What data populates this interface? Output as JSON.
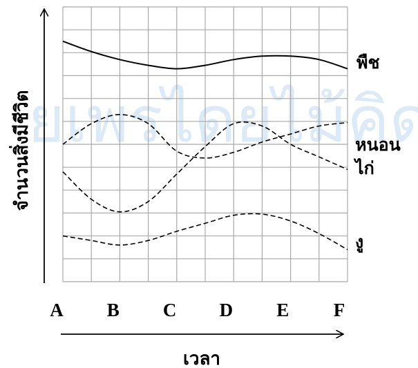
{
  "watermark": "ยเพรไดยไม้คิด",
  "chart_data": {
    "type": "line",
    "title": "",
    "xlabel": "เวลา",
    "ylabel": "จำนวนสิ่งมีชีวิต",
    "categories": [
      "A",
      "B",
      "C",
      "D",
      "E",
      "F"
    ],
    "ylim": [
      0,
      12
    ],
    "grid": true,
    "legend": "right-of-lines",
    "series": [
      {
        "name": "พืช",
        "style": "solid",
        "color": "#000000",
        "x": [
          0,
          0.5,
          1,
          1.5,
          2,
          2.5,
          3,
          3.5,
          4,
          4.5,
          5
        ],
        "values": [
          10.5,
          10.05,
          9.7,
          9.45,
          9.3,
          9.45,
          9.7,
          9.85,
          9.85,
          9.7,
          9.3
        ]
      },
      {
        "name": "หนอน",
        "style": "dashed",
        "color": "#000000",
        "x": [
          0,
          0.5,
          1,
          1.5,
          2,
          2.5,
          3,
          3.5,
          4,
          4.5,
          5
        ],
        "values": [
          6.0,
          6.9,
          7.3,
          6.9,
          5.7,
          5.4,
          5.65,
          6.1,
          6.45,
          6.8,
          6.95
        ]
      },
      {
        "name": "ไก่",
        "style": "dashed",
        "color": "#000000",
        "x": [
          0,
          0.5,
          1,
          1.5,
          2,
          2.5,
          3,
          3.5,
          4,
          4.5,
          5
        ],
        "values": [
          4.8,
          3.6,
          3.05,
          3.5,
          4.7,
          5.9,
          6.9,
          6.8,
          6.0,
          5.45,
          4.9
        ]
      },
      {
        "name": "งู",
        "style": "dashed",
        "color": "#000000",
        "x": [
          0,
          0.5,
          1,
          1.5,
          2,
          2.5,
          3,
          3.5,
          4,
          4.5,
          5
        ],
        "values": [
          2.0,
          1.8,
          1.6,
          1.8,
          2.2,
          2.55,
          2.9,
          2.95,
          2.65,
          2.1,
          1.4
        ]
      }
    ]
  }
}
